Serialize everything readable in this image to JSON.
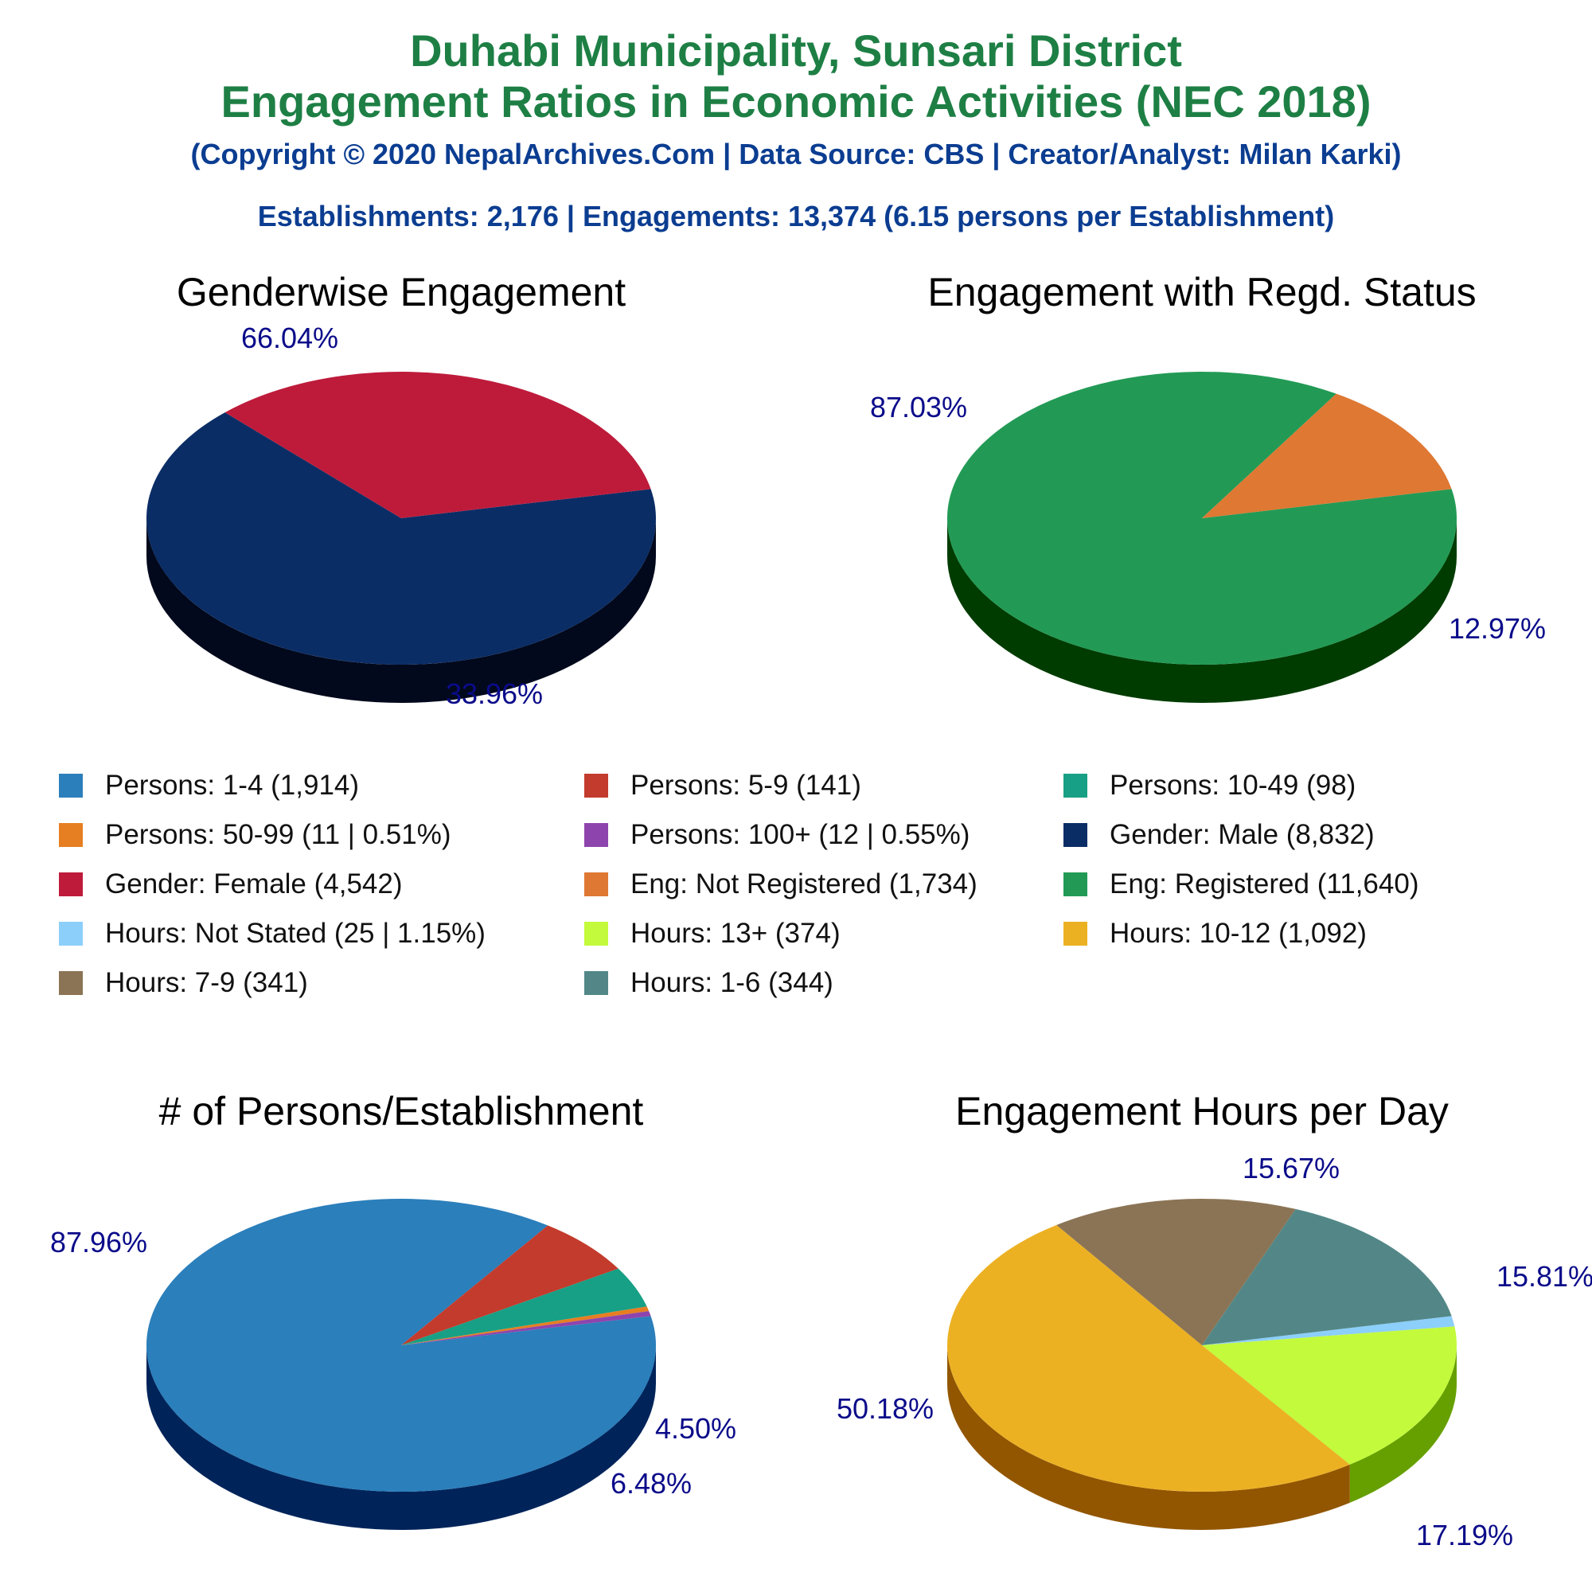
{
  "header": {
    "title_line1": "Duhabi Municipality, Sunsari District",
    "title_line2": "Engagement Ratios in Economic Activities (NEC 2018)",
    "credit": "(Copyright © 2020 NepalArchives.Com | Data Source: CBS | Creator/Analyst: Milan Karki)",
    "summary": "Establishments: 2,176 | Engagements: 13,374 (6.15 persons per Establishment)"
  },
  "chart_data": [
    {
      "type": "pie",
      "title": "Genderwise Engagement",
      "slices": [
        {
          "label": "Gender: Male",
          "value": 8832,
          "percent_label": "66.04%",
          "color": "#0b2d66",
          "side": "#02091c"
        },
        {
          "label": "Gender: Female",
          "value": 4542,
          "percent_label": "33.96%",
          "color": "#be1b3b",
          "side": "#640000"
        }
      ]
    },
    {
      "type": "pie",
      "title": "Engagement with Regd. Status",
      "slices": [
        {
          "label": "Eng: Registered",
          "value": 11640,
          "percent_label": "87.03%",
          "color": "#229a55",
          "side": "#003c00"
        },
        {
          "label": "Eng: Not Registered",
          "value": 1734,
          "percent_label": "12.97%",
          "color": "#de7833",
          "side": "#7a1e00"
        }
      ]
    },
    {
      "type": "pie",
      "title": "# of Persons/Establishment",
      "slices": [
        {
          "label": "Persons: 1-4",
          "value": 1914,
          "percent_label": "87.96%",
          "color": "#2b7fbb",
          "side": "#00245a"
        },
        {
          "label": "Persons: 5-9",
          "value": 141,
          "percent_label": "6.48%",
          "color": "#c33b2c",
          "side": "#670000"
        },
        {
          "label": "Persons: 10-49",
          "value": 98,
          "percent_label": "4.50%",
          "color": "#17a085",
          "side": "#00472a"
        },
        {
          "label": "Persons: 50-99",
          "value": 11,
          "percent_label": "",
          "color": "#e67e22",
          "side": "#8a2600"
        },
        {
          "label": "Persons: 100+",
          "value": 12,
          "percent_label": "",
          "color": "#8e44ad",
          "side": "#360052"
        }
      ]
    },
    {
      "type": "pie",
      "title": "Engagement Hours per Day",
      "slices": [
        {
          "label": "Hours: Not Stated",
          "value": 25,
          "percent_label": "",
          "color": "#8ccffa",
          "side": "#3274a0"
        },
        {
          "label": "Hours: 13+",
          "value": 374,
          "percent_label": "17.19%",
          "color": "#c3fa3c",
          "side": "#66a000"
        },
        {
          "label": "Hours: 10-12",
          "value": 1092,
          "percent_label": "50.18%",
          "color": "#ecb123",
          "side": "#925600"
        },
        {
          "label": "Hours: 7-9",
          "value": 341,
          "percent_label": "15.67%",
          "color": "#8b7455",
          "side": "#301a00"
        },
        {
          "label": "Hours: 1-6",
          "value": 344,
          "percent_label": "15.81%",
          "color": "#538787",
          "side": "#002d2d"
        }
      ]
    }
  ],
  "legend": [
    {
      "label": "Persons: 1-4 (1,914)",
      "color": "#2b7fbb"
    },
    {
      "label": "Persons: 5-9 (141)",
      "color": "#c33b2c"
    },
    {
      "label": "Persons: 10-49 (98)",
      "color": "#17a085"
    },
    {
      "label": "Persons: 50-99 (11 | 0.51%)",
      "color": "#e67e22"
    },
    {
      "label": "Persons: 100+ (12 | 0.55%)",
      "color": "#8e44ad"
    },
    {
      "label": "Gender: Male (8,832)",
      "color": "#0b2d66"
    },
    {
      "label": "Gender: Female (4,542)",
      "color": "#be1b3b"
    },
    {
      "label": "Eng: Not Registered (1,734)",
      "color": "#de7833"
    },
    {
      "label": "Eng: Registered (11,640)",
      "color": "#229a55"
    },
    {
      "label": "Hours: Not Stated (25 | 1.15%)",
      "color": "#8ccffa"
    },
    {
      "label": "Hours: 13+ (374)",
      "color": "#c3fa3c"
    },
    {
      "label": "Hours: 10-12 (1,092)",
      "color": "#ecb123"
    },
    {
      "label": "Hours: 7-9 (341)",
      "color": "#8b7455"
    },
    {
      "label": "Hours: 1-6 (344)",
      "color": "#538787"
    }
  ]
}
